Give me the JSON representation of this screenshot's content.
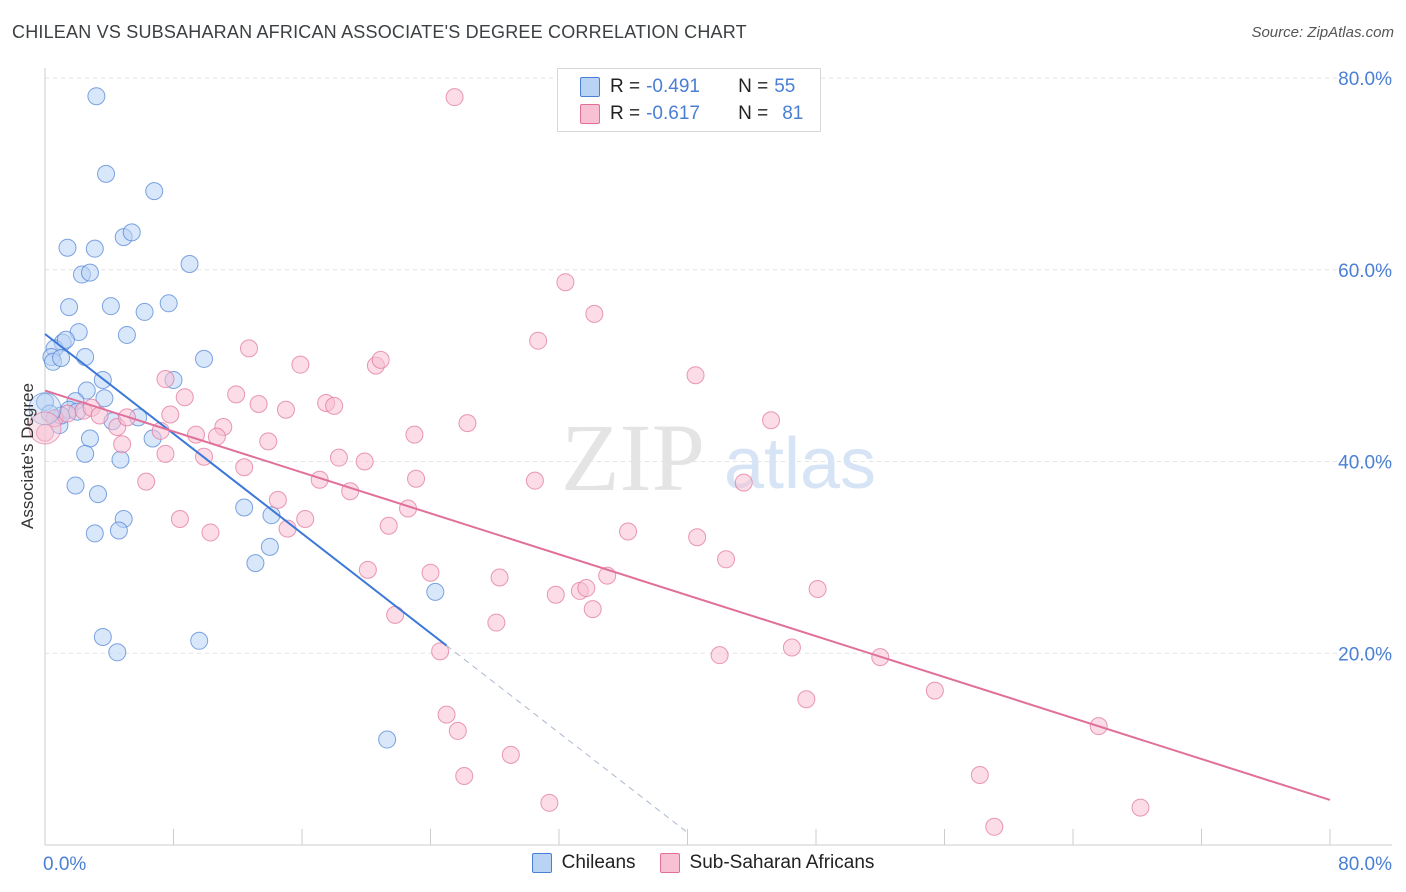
{
  "chart_data": {
    "type": "scatter",
    "title": "CHILEAN VS SUBSAHARAN AFRICAN ASSOCIATE'S DEGREE CORRELATION CHART",
    "source": "Source: ZipAtlas.com",
    "ylabel": "Associate's Degree",
    "xlabel": "",
    "xlim": [
      0,
      80
    ],
    "ylim": [
      0,
      80
    ],
    "x_tick_labels": [
      "0.0%",
      "80.0%"
    ],
    "y_tick_labels": [
      "20.0%",
      "40.0%",
      "60.0%",
      "80.0%"
    ],
    "y_ticks": [
      20,
      40,
      60,
      80
    ],
    "grid": true,
    "watermark": {
      "zip": "ZIP",
      "atlas": "atlas"
    },
    "legend_position": "bottom",
    "stats": [
      {
        "r_label": "R =",
        "r_value": "-0.491",
        "n_label": "N =",
        "n_value": "55",
        "color": "#4a7fd4",
        "fill": "#b9d3f5"
      },
      {
        "r_label": "R =",
        "r_value": "-0.617",
        "n_label": "N =",
        "n_value": "81",
        "color": "#e0709a",
        "fill": "#f7c0d3"
      }
    ],
    "series": [
      {
        "name": "Chileans",
        "color": "#4a7fd4",
        "fill": "#b9d3f5",
        "trend": {
          "x0": 0.0,
          "y0": 53.3,
          "x1": 25.0,
          "y1": 20.8,
          "dash_to_x": 40.0
        },
        "points": [
          [
            3.2,
            78.1
          ],
          [
            3.8,
            70.0
          ],
          [
            6.8,
            68.2
          ],
          [
            1.4,
            62.3
          ],
          [
            3.1,
            62.2
          ],
          [
            4.9,
            63.4
          ],
          [
            5.4,
            63.9
          ],
          [
            9.0,
            60.6
          ],
          [
            2.3,
            59.5
          ],
          [
            2.8,
            59.7
          ],
          [
            1.5,
            56.1
          ],
          [
            4.1,
            56.2
          ],
          [
            7.7,
            56.5
          ],
          [
            6.2,
            55.6
          ],
          [
            2.1,
            53.5
          ],
          [
            5.1,
            53.2
          ],
          [
            1.1,
            52.4
          ],
          [
            0.6,
            51.8
          ],
          [
            1.3,
            52.7
          ],
          [
            0.4,
            50.9
          ],
          [
            0.5,
            50.4
          ],
          [
            1.0,
            50.8
          ],
          [
            2.5,
            50.9
          ],
          [
            9.9,
            50.7
          ],
          [
            0.0,
            46.2
          ],
          [
            2.6,
            47.4
          ],
          [
            3.6,
            48.5
          ],
          [
            8.0,
            48.5
          ],
          [
            1.9,
            46.3
          ],
          [
            3.7,
            46.6
          ],
          [
            4.2,
            44.2
          ],
          [
            1.5,
            45.4
          ],
          [
            0.9,
            43.8
          ],
          [
            2.8,
            42.4
          ],
          [
            6.7,
            42.4
          ],
          [
            5.8,
            44.6
          ],
          [
            2.5,
            40.8
          ],
          [
            4.7,
            40.2
          ],
          [
            1.9,
            37.5
          ],
          [
            3.3,
            36.6
          ],
          [
            4.9,
            34.0
          ],
          [
            3.1,
            32.5
          ],
          [
            4.6,
            32.8
          ],
          [
            12.4,
            35.2
          ],
          [
            14.1,
            34.4
          ],
          [
            14.0,
            31.1
          ],
          [
            13.1,
            29.4
          ],
          [
            24.3,
            26.4
          ],
          [
            3.6,
            21.7
          ],
          [
            4.5,
            20.1
          ],
          [
            9.6,
            21.3
          ],
          [
            21.3,
            11.0
          ],
          [
            1.0,
            44.8
          ],
          [
            0.3,
            45.0
          ],
          [
            2.0,
            45.2
          ]
        ]
      },
      {
        "name": "Sub-Saharan Africans",
        "color": "#e0709a",
        "fill": "#f7c0d3",
        "trend": {
          "x0": 0.0,
          "y0": 47.4,
          "x1": 80.0,
          "y1": 4.7
        },
        "points": [
          [
            25.5,
            78.0
          ],
          [
            32.4,
            58.7
          ],
          [
            34.2,
            55.4
          ],
          [
            30.7,
            52.6
          ],
          [
            12.7,
            51.8
          ],
          [
            15.9,
            50.1
          ],
          [
            20.6,
            50.0
          ],
          [
            20.9,
            50.6
          ],
          [
            40.5,
            49.0
          ],
          [
            7.5,
            48.6
          ],
          [
            8.7,
            46.7
          ],
          [
            11.9,
            47.0
          ],
          [
            13.3,
            46.0
          ],
          [
            15.0,
            45.4
          ],
          [
            17.5,
            46.1
          ],
          [
            18.0,
            45.8
          ],
          [
            0.0,
            43.0
          ],
          [
            0.6,
            44.5
          ],
          [
            1.4,
            45.0
          ],
          [
            2.4,
            45.3
          ],
          [
            2.9,
            45.6
          ],
          [
            3.4,
            44.8
          ],
          [
            4.5,
            43.6
          ],
          [
            5.1,
            44.6
          ],
          [
            7.2,
            43.2
          ],
          [
            9.4,
            42.8
          ],
          [
            11.1,
            43.6
          ],
          [
            10.7,
            42.6
          ],
          [
            13.9,
            42.1
          ],
          [
            23.0,
            42.8
          ],
          [
            4.8,
            41.8
          ],
          [
            7.5,
            40.8
          ],
          [
            9.9,
            40.5
          ],
          [
            12.4,
            39.4
          ],
          [
            18.3,
            40.4
          ],
          [
            19.9,
            40.0
          ],
          [
            17.1,
            38.1
          ],
          [
            19.0,
            36.9
          ],
          [
            23.1,
            38.2
          ],
          [
            30.5,
            38.0
          ],
          [
            43.5,
            37.8
          ],
          [
            6.3,
            37.9
          ],
          [
            14.5,
            36.0
          ],
          [
            22.6,
            35.1
          ],
          [
            8.4,
            34.0
          ],
          [
            16.2,
            34.0
          ],
          [
            10.3,
            32.6
          ],
          [
            15.1,
            33.0
          ],
          [
            21.4,
            33.3
          ],
          [
            36.3,
            32.7
          ],
          [
            40.6,
            32.1
          ],
          [
            42.4,
            29.8
          ],
          [
            20.1,
            28.7
          ],
          [
            24.0,
            28.4
          ],
          [
            28.3,
            27.9
          ],
          [
            33.3,
            26.5
          ],
          [
            33.7,
            26.8
          ],
          [
            35.0,
            28.1
          ],
          [
            31.8,
            26.1
          ],
          [
            48.1,
            26.7
          ],
          [
            34.1,
            24.6
          ],
          [
            21.8,
            24.0
          ],
          [
            28.1,
            23.2
          ],
          [
            24.6,
            20.2
          ],
          [
            42.0,
            19.8
          ],
          [
            46.5,
            20.6
          ],
          [
            52.0,
            19.6
          ],
          [
            55.4,
            16.1
          ],
          [
            47.4,
            15.2
          ],
          [
            65.6,
            12.4
          ],
          [
            25.0,
            13.6
          ],
          [
            25.7,
            11.9
          ],
          [
            29.0,
            9.4
          ],
          [
            26.1,
            7.2
          ],
          [
            58.2,
            7.3
          ],
          [
            31.4,
            4.4
          ],
          [
            68.2,
            3.9
          ],
          [
            59.1,
            1.9
          ],
          [
            45.2,
            44.3
          ],
          [
            7.8,
            44.9
          ],
          [
            26.3,
            44.0
          ]
        ]
      }
    ]
  },
  "legend": {
    "items": [
      {
        "label": "Chileans",
        "color": "#4a7fd4",
        "fill": "#b9d3f5"
      },
      {
        "label": "Sub-Saharan Africans",
        "color": "#e0709a",
        "fill": "#f7c0d3"
      }
    ]
  }
}
